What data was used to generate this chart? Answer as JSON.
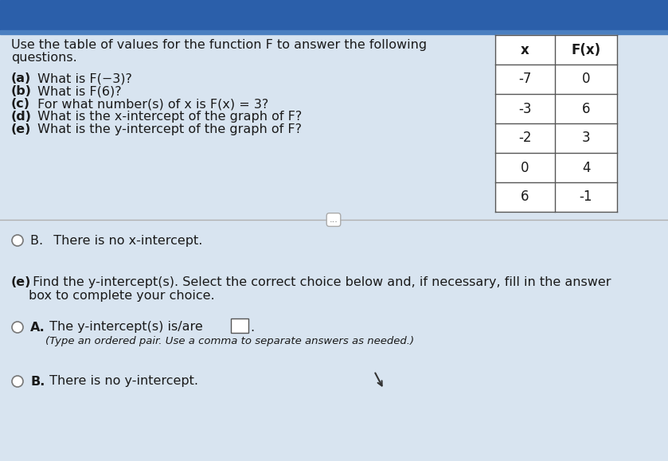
{
  "bg_color_top": "#2b5faa",
  "bg_color_main": "#d8e4f0",
  "title_line1": "Use the table of values for the function F to answer the following",
  "title_line2": "questions.",
  "questions": [
    [
      "(a)",
      " What is F(−3)?"
    ],
    [
      "(b)",
      " What is F(6)?"
    ],
    [
      "(c)",
      " For what number(s) of x is F(x) = 3?"
    ],
    [
      "(d)",
      " What is the x-intercept of the graph of F?"
    ],
    [
      "(e)",
      " What is the y-intercept of the graph of F?"
    ]
  ],
  "table_x_label": "x",
  "table_fx_label": "F(x)",
  "table_data": [
    [
      "-7",
      "0"
    ],
    [
      "-3",
      "6"
    ],
    [
      "-2",
      "3"
    ],
    [
      "0",
      "4"
    ],
    [
      "6",
      "-1"
    ]
  ],
  "bottom_b_text": "B.  There is no x-intercept.",
  "bottom_e_bold": "(e)",
  "bottom_e_rest": " Find the y-intercept(s). Select the correct choice below and, if necessary, fill in the answer\nbox to complete your choice.",
  "choice_a_label": "A.",
  "choice_a_text": " The y-intercept(s) is/are",
  "choice_a_sub": "(Type an ordered pair. Use a comma to separate answers as needed.)",
  "choice_b_label": "B.",
  "choice_b_text": " There is no y-intercept.",
  "font_color": "#1a1a1a",
  "blue_text_color": "#2255aa",
  "table_border_color": "#555555",
  "radio_color": "#777777",
  "divider_color": "#b0b0b0"
}
